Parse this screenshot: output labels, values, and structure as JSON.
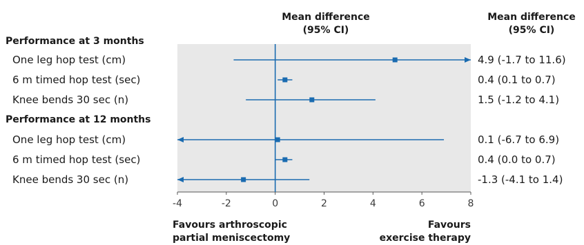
{
  "header": {
    "plot_title_line1": "Mean difference",
    "plot_title_line2": "(95% CI)",
    "ci_title_line1": "Mean difference",
    "ci_title_line2": "(95% CI)"
  },
  "groups": [
    {
      "label": "Performance at 3 months",
      "rows": [
        {
          "label": "One leg hop test (cm)",
          "ci_text": "4.9 (-1.7 to 11.6)"
        },
        {
          "label": "6 m timed hop test (sec)",
          "ci_text": "0.4 (0.1 to 0.7)"
        },
        {
          "label": "Knee bends 30 sec (n)",
          "ci_text": "1.5 (-1.2 to 4.1)"
        }
      ]
    },
    {
      "label": "Performance at 12 months",
      "rows": [
        {
          "label": "One leg hop test (cm)",
          "ci_text": "0.1 (-6.7 to 6.9)"
        },
        {
          "label": "6 m timed hop test (sec)",
          "ci_text": "0.4 (0.0 to 0.7)"
        },
        {
          "label": "Knee bends 30 sec (n)",
          "ci_text": "-1.3 (-4.1 to 1.4)"
        }
      ]
    }
  ],
  "footer": {
    "left_line1": "Favours arthroscopic",
    "left_line2": "partial meniscectomy",
    "right_line1": "Favours",
    "right_line2": "exercise therapy"
  },
  "colors": {
    "plot_background": "#e8e8e8",
    "marker": "#1a6bb0",
    "text": "#1a1a1a"
  },
  "chart_data": {
    "type": "forest",
    "xlim": [
      -4,
      8
    ],
    "x_ticks": [
      -4,
      -2,
      0,
      2,
      4,
      6,
      8
    ],
    "reference_line": 0,
    "rows": [
      {
        "group": "Performance at 3 months",
        "label": "One leg hop test (cm)",
        "estimate": 4.9,
        "lower": -1.7,
        "upper": 11.6
      },
      {
        "group": "Performance at 3 months",
        "label": "6 m timed hop test (sec)",
        "estimate": 0.4,
        "lower": 0.1,
        "upper": 0.7
      },
      {
        "group": "Performance at 3 months",
        "label": "Knee bends 30 sec (n)",
        "estimate": 1.5,
        "lower": -1.2,
        "upper": 4.1
      },
      {
        "group": "Performance at 12 months",
        "label": "One leg hop test (cm)",
        "estimate": 0.1,
        "lower": -6.7,
        "upper": 6.9
      },
      {
        "group": "Performance at 12 months",
        "label": "6 m timed hop test (sec)",
        "estimate": 0.4,
        "lower": 0.0,
        "upper": 0.7
      },
      {
        "group": "Performance at 12 months",
        "label": "Knee bends 30 sec (n)",
        "estimate": -1.3,
        "lower": -4.1,
        "upper": 1.4
      }
    ]
  }
}
